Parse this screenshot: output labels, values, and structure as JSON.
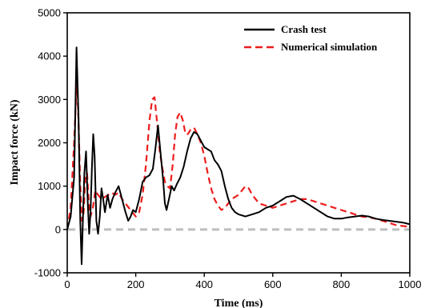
{
  "chart_data": {
    "type": "line",
    "title": "",
    "xlabel": "Time (ms)",
    "ylabel": "Impact force (kN)",
    "xlim": [
      0,
      1000
    ],
    "ylim": [
      -1000,
      5000
    ],
    "xticks": [
      0,
      200,
      400,
      600,
      800,
      1000
    ],
    "yticks": [
      -1000,
      0,
      1000,
      2000,
      3000,
      4000,
      5000
    ],
    "grid": false,
    "legend": "top-right",
    "zero_line": {
      "y": 0,
      "color": "#bdbdbd",
      "dash": "dashed"
    },
    "series": [
      {
        "name": "Crash test",
        "color": "#000000",
        "style": "solid",
        "x": [
          0,
          10,
          20,
          27,
          33,
          38,
          42,
          46,
          50,
          55,
          60,
          64,
          68,
          72,
          76,
          80,
          85,
          90,
          95,
          100,
          105,
          110,
          118,
          125,
          132,
          140,
          150,
          160,
          170,
          178,
          185,
          192,
          200,
          210,
          220,
          230,
          240,
          250,
          258,
          265,
          272,
          280,
          285,
          290,
          297,
          305,
          312,
          320,
          330,
          340,
          350,
          360,
          370,
          380,
          390,
          400,
          410,
          420,
          430,
          440,
          450,
          460,
          470,
          480,
          490,
          500,
          520,
          540,
          560,
          580,
          600,
          620,
          640,
          660,
          680,
          700,
          720,
          740,
          760,
          780,
          800,
          820,
          840,
          860,
          880,
          900,
          920,
          940,
          960,
          980,
          1000
        ],
        "y": [
          0,
          300,
          1200,
          4200,
          2600,
          200,
          -800,
          300,
          1300,
          1800,
          600,
          -100,
          400,
          1400,
          2200,
          1700,
          200,
          -100,
          300,
          950,
          700,
          400,
          800,
          500,
          700,
          850,
          1000,
          700,
          400,
          200,
          300,
          450,
          400,
          700,
          1100,
          1200,
          1250,
          1400,
          1900,
          2400,
          1800,
          1150,
          600,
          450,
          700,
          1000,
          900,
          1050,
          1200,
          1450,
          1800,
          2100,
          2250,
          2200,
          2050,
          1900,
          1850,
          1800,
          1600,
          1500,
          1350,
          1000,
          700,
          500,
          400,
          350,
          300,
          350,
          400,
          500,
          550,
          650,
          750,
          780,
          700,
          600,
          500,
          400,
          300,
          250,
          250,
          280,
          300,
          320,
          300,
          250,
          220,
          200,
          180,
          160,
          120
        ]
      },
      {
        "name": "Numerical simulation",
        "color": "#ee1c1c",
        "style": "dashed",
        "x": [
          0,
          10,
          20,
          28,
          33,
          38,
          43,
          48,
          53,
          58,
          63,
          68,
          75,
          82,
          90,
          100,
          110,
          120,
          130,
          140,
          150,
          160,
          170,
          180,
          190,
          200,
          210,
          220,
          230,
          240,
          248,
          255,
          262,
          270,
          278,
          285,
          292,
          300,
          308,
          315,
          322,
          330,
          338,
          345,
          352,
          360,
          370,
          380,
          390,
          400,
          410,
          420,
          430,
          440,
          450,
          460,
          470,
          480,
          490,
          500,
          510,
          520,
          530,
          540,
          550,
          560,
          580,
          600,
          620,
          640,
          660,
          680,
          700,
          720,
          740,
          760,
          780,
          800,
          820,
          840,
          860,
          880,
          900,
          920,
          940,
          960,
          980,
          1000
        ],
        "y": [
          0,
          500,
          2000,
          3500,
          2500,
          1000,
          200,
          400,
          1200,
          1300,
          600,
          300,
          500,
          900,
          800,
          700,
          750,
          800,
          850,
          800,
          850,
          700,
          600,
          500,
          400,
          300,
          400,
          800,
          1500,
          2500,
          3000,
          3050,
          2500,
          1800,
          1400,
          1100,
          1000,
          950,
          1500,
          2200,
          2600,
          2700,
          2500,
          2200,
          2200,
          2300,
          2350,
          2200,
          2000,
          1700,
          1300,
          950,
          700,
          550,
          450,
          500,
          600,
          700,
          750,
          800,
          900,
          1000,
          950,
          800,
          700,
          600,
          550,
          500,
          550,
          600,
          650,
          700,
          700,
          650,
          600,
          550,
          500,
          450,
          400,
          350,
          300,
          280,
          250,
          200,
          150,
          100,
          80,
          60
        ]
      }
    ]
  }
}
